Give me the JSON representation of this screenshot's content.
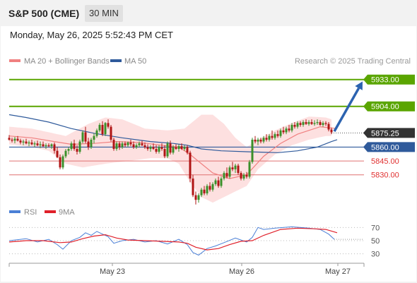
{
  "header": {
    "title": "S&P 500 (CME)",
    "interval": "30 MIN",
    "datetime": "Monday, May 26, 2025 5:52:43 PM CET"
  },
  "legend": {
    "items": [
      {
        "label": "MA 20 + Bollinger Bands",
        "color": "#f08080"
      },
      {
        "label": "MA 50",
        "color": "#2f5a9b"
      }
    ],
    "credit": "Research © 2025 Trading Central"
  },
  "rsi_legend": {
    "items": [
      {
        "label": "RSI",
        "color": "#4a7fd6"
      },
      {
        "label": "9MA",
        "color": "#e0202a"
      }
    ]
  },
  "colors": {
    "bull": "#3a8f2a",
    "bear": "#b01515",
    "resistance": "#5aa500",
    "support": "#e07070",
    "ma50": "#2f5a9b",
    "ma20": "#f08080",
    "band": "#fde0e0",
    "current": "#333333",
    "arrow": "#2c63b0"
  },
  "chart_data": [
    {
      "type": "candlestick",
      "title": "S&P 500 (CME)",
      "interval": "30 MIN",
      "x_ticks": [
        "May 23",
        "May 26",
        "May 27"
      ],
      "ylim": [
        5797,
        5945
      ],
      "ohlc": [
        [
          5870,
          5873,
          5867,
          5868
        ],
        [
          5868,
          5870,
          5865,
          5867
        ],
        [
          5867,
          5871,
          5864,
          5869
        ],
        [
          5869,
          5872,
          5866,
          5867
        ],
        [
          5867,
          5869,
          5863,
          5865
        ],
        [
          5865,
          5868,
          5862,
          5866
        ],
        [
          5866,
          5869,
          5863,
          5864
        ],
        [
          5864,
          5867,
          5861,
          5865
        ],
        [
          5865,
          5868,
          5862,
          5863
        ],
        [
          5863,
          5866,
          5860,
          5864
        ],
        [
          5864,
          5867,
          5861,
          5862
        ],
        [
          5862,
          5866,
          5859,
          5863
        ],
        [
          5863,
          5866,
          5860,
          5861
        ],
        [
          5861,
          5864,
          5858,
          5862
        ],
        [
          5862,
          5864,
          5860,
          5861
        ],
        [
          5861,
          5864,
          5858,
          5863
        ],
        [
          5863,
          5865,
          5853,
          5856
        ],
        [
          5856,
          5860,
          5848,
          5849
        ],
        [
          5849,
          5852,
          5836,
          5838
        ],
        [
          5838,
          5852,
          5836,
          5850
        ],
        [
          5850,
          5858,
          5848,
          5856
        ],
        [
          5856,
          5860,
          5852,
          5858
        ],
        [
          5858,
          5866,
          5856,
          5864
        ],
        [
          5864,
          5868,
          5856,
          5858
        ],
        [
          5858,
          5862,
          5852,
          5855
        ],
        [
          5855,
          5868,
          5853,
          5866
        ],
        [
          5866,
          5878,
          5864,
          5876
        ],
        [
          5876,
          5882,
          5864,
          5866
        ],
        [
          5866,
          5870,
          5857,
          5860
        ],
        [
          5860,
          5870,
          5858,
          5868
        ],
        [
          5868,
          5875,
          5864,
          5872
        ],
        [
          5872,
          5880,
          5870,
          5878
        ],
        [
          5878,
          5886,
          5876,
          5884
        ],
        [
          5884,
          5888,
          5872,
          5874
        ],
        [
          5874,
          5887,
          5872,
          5886
        ],
        [
          5886,
          5890,
          5880,
          5882
        ],
        [
          5882,
          5884,
          5866,
          5868
        ],
        [
          5868,
          5870,
          5856,
          5858
        ],
        [
          5858,
          5866,
          5856,
          5864
        ],
        [
          5864,
          5866,
          5857,
          5860
        ],
        [
          5860,
          5866,
          5858,
          5864
        ],
        [
          5864,
          5866,
          5860,
          5862
        ],
        [
          5862,
          5866,
          5860,
          5865
        ],
        [
          5865,
          5868,
          5861,
          5863
        ],
        [
          5863,
          5866,
          5858,
          5860
        ],
        [
          5860,
          5864,
          5858,
          5862
        ],
        [
          5862,
          5866,
          5860,
          5864
        ],
        [
          5864,
          5867,
          5861,
          5862
        ],
        [
          5862,
          5865,
          5858,
          5860
        ],
        [
          5860,
          5863,
          5856,
          5858
        ],
        [
          5858,
          5862,
          5855,
          5860
        ],
        [
          5860,
          5864,
          5857,
          5858
        ],
        [
          5858,
          5862,
          5853,
          5855
        ],
        [
          5855,
          5862,
          5853,
          5860
        ],
        [
          5860,
          5864,
          5856,
          5858
        ],
        [
          5858,
          5862,
          5848,
          5850
        ],
        [
          5850,
          5866,
          5848,
          5864
        ],
        [
          5864,
          5867,
          5852,
          5854
        ],
        [
          5854,
          5862,
          5852,
          5860
        ],
        [
          5860,
          5863,
          5857,
          5858
        ],
        [
          5858,
          5863,
          5855,
          5861
        ],
        [
          5861,
          5864,
          5857,
          5858
        ],
        [
          5858,
          5862,
          5856,
          5860
        ],
        [
          5860,
          5862,
          5852,
          5854
        ],
        [
          5854,
          5856,
          5822,
          5826
        ],
        [
          5826,
          5830,
          5806,
          5808
        ],
        [
          5808,
          5812,
          5798,
          5803
        ],
        [
          5803,
          5810,
          5800,
          5808
        ],
        [
          5808,
          5816,
          5806,
          5814
        ],
        [
          5814,
          5818,
          5808,
          5810
        ],
        [
          5810,
          5820,
          5808,
          5818
        ],
        [
          5818,
          5822,
          5812,
          5814
        ],
        [
          5814,
          5822,
          5812,
          5820
        ],
        [
          5820,
          5826,
          5818,
          5824
        ],
        [
          5824,
          5828,
          5816,
          5818
        ],
        [
          5818,
          5828,
          5816,
          5826
        ],
        [
          5826,
          5834,
          5824,
          5832
        ],
        [
          5832,
          5838,
          5826,
          5828
        ],
        [
          5828,
          5840,
          5826,
          5838
        ],
        [
          5838,
          5844,
          5834,
          5836
        ],
        [
          5836,
          5842,
          5832,
          5840
        ],
        [
          5840,
          5842,
          5830,
          5832
        ],
        [
          5832,
          5834,
          5824,
          5826
        ],
        [
          5826,
          5832,
          5824,
          5830
        ],
        [
          5830,
          5833,
          5826,
          5828
        ],
        [
          5828,
          5846,
          5826,
          5844
        ],
        [
          5844,
          5870,
          5842,
          5868
        ],
        [
          5868,
          5872,
          5864,
          5866
        ],
        [
          5866,
          5870,
          5862,
          5868
        ],
        [
          5868,
          5870,
          5864,
          5866
        ],
        [
          5866,
          5872,
          5864,
          5870
        ],
        [
          5870,
          5874,
          5866,
          5868
        ],
        [
          5868,
          5874,
          5866,
          5872
        ],
        [
          5872,
          5878,
          5868,
          5870
        ],
        [
          5870,
          5876,
          5868,
          5874
        ],
        [
          5874,
          5878,
          5870,
          5872
        ],
        [
          5872,
          5880,
          5870,
          5878
        ],
        [
          5878,
          5882,
          5874,
          5876
        ],
        [
          5876,
          5882,
          5874,
          5880
        ],
        [
          5880,
          5884,
          5876,
          5878
        ],
        [
          5878,
          5886,
          5876,
          5884
        ],
        [
          5884,
          5887,
          5880,
          5882
        ],
        [
          5882,
          5888,
          5880,
          5886
        ],
        [
          5886,
          5888,
          5882,
          5884
        ],
        [
          5884,
          5889,
          5882,
          5887
        ],
        [
          5887,
          5890,
          5884,
          5885
        ],
        [
          5885,
          5889,
          5883,
          5887
        ],
        [
          5887,
          5890,
          5884,
          5885
        ],
        [
          5885,
          5889,
          5883,
          5886
        ],
        [
          5886,
          5890,
          5884,
          5887
        ],
        [
          5887,
          5889,
          5883,
          5884
        ],
        [
          5884,
          5888,
          5882,
          5886
        ],
        [
          5886,
          5888,
          5883,
          5885
        ],
        [
          5885,
          5887,
          5877,
          5879
        ],
        [
          5879,
          5881,
          5874,
          5876
        ]
      ],
      "ma50": [
        [
          0,
          5895
        ],
        [
          6,
          5892
        ],
        [
          14,
          5887
        ],
        [
          22,
          5880
        ],
        [
          30,
          5875
        ],
        [
          40,
          5870
        ],
        [
          50,
          5866
        ],
        [
          58,
          5864
        ],
        [
          63,
          5862
        ],
        [
          68,
          5858
        ],
        [
          75,
          5856
        ],
        [
          84,
          5855
        ],
        [
          95,
          5854
        ],
        [
          102,
          5856
        ],
        [
          109,
          5860
        ],
        [
          114,
          5866
        ],
        [
          116,
          5868
        ]
      ],
      "ma20": [
        [
          0,
          5872
        ],
        [
          8,
          5870
        ],
        [
          16,
          5866
        ],
        [
          22,
          5863
        ],
        [
          30,
          5864
        ],
        [
          38,
          5866
        ],
        [
          46,
          5865
        ],
        [
          54,
          5862
        ],
        [
          60,
          5860
        ],
        [
          64,
          5852
        ],
        [
          68,
          5842
        ],
        [
          72,
          5832
        ],
        [
          78,
          5826
        ],
        [
          84,
          5830
        ],
        [
          90,
          5850
        ],
        [
          96,
          5864
        ],
        [
          102,
          5874
        ],
        [
          110,
          5882
        ],
        [
          116,
          5880
        ]
      ],
      "band_upper": [
        [
          0,
          5882
        ],
        [
          8,
          5880
        ],
        [
          14,
          5876
        ],
        [
          20,
          5872
        ],
        [
          28,
          5885
        ],
        [
          34,
          5892
        ],
        [
          40,
          5890
        ],
        [
          48,
          5880
        ],
        [
          56,
          5878
        ],
        [
          62,
          5880
        ],
        [
          64,
          5885
        ],
        [
          68,
          5895
        ],
        [
          72,
          5895
        ],
        [
          76,
          5885
        ],
        [
          80,
          5870
        ],
        [
          84,
          5860
        ],
        [
          88,
          5868
        ],
        [
          94,
          5878
        ],
        [
          100,
          5886
        ],
        [
          106,
          5893
        ],
        [
          112,
          5892
        ],
        [
          116,
          5888
        ]
      ],
      "band_lower": [
        [
          0,
          5863
        ],
        [
          8,
          5860
        ],
        [
          14,
          5856
        ],
        [
          20,
          5842
        ],
        [
          26,
          5838
        ],
        [
          34,
          5842
        ],
        [
          42,
          5845
        ],
        [
          50,
          5848
        ],
        [
          56,
          5848
        ],
        [
          60,
          5842
        ],
        [
          64,
          5822
        ],
        [
          68,
          5806
        ],
        [
          72,
          5800
        ],
        [
          76,
          5806
        ],
        [
          80,
          5812
        ],
        [
          84,
          5818
        ],
        [
          88,
          5836
        ],
        [
          94,
          5852
        ],
        [
          100,
          5862
        ],
        [
          106,
          5868
        ],
        [
          112,
          5872
        ],
        [
          116,
          5872
        ]
      ],
      "levels": [
        {
          "value": 5933.0,
          "label": "5933.00",
          "kind": "resistance"
        },
        {
          "value": 5904.0,
          "label": "5904.00",
          "kind": "resistance"
        },
        {
          "value": 5875.25,
          "label": "5875.25",
          "kind": "current"
        },
        {
          "value": 5860.0,
          "label": "5860.00",
          "kind": "pivot"
        },
        {
          "value": 5845.0,
          "label": "5845.00",
          "kind": "support"
        },
        {
          "value": 5830.0,
          "label": "5830.00",
          "kind": "support"
        }
      ],
      "arrow": {
        "from": 5877,
        "to": 5931
      }
    },
    {
      "type": "line",
      "series": [
        {
          "name": "RSI"
        },
        {
          "name": "9MA"
        }
      ],
      "yticks": [
        70,
        50,
        30
      ],
      "ylim": [
        20,
        80
      ],
      "rsi": [
        [
          0,
          50
        ],
        [
          6,
          53
        ],
        [
          10,
          48
        ],
        [
          14,
          52
        ],
        [
          17,
          44
        ],
        [
          19,
          37
        ],
        [
          22,
          50
        ],
        [
          25,
          55
        ],
        [
          27,
          62
        ],
        [
          29,
          58
        ],
        [
          31,
          64
        ],
        [
          33,
          60
        ],
        [
          35,
          56
        ],
        [
          37,
          46
        ],
        [
          40,
          50
        ],
        [
          44,
          52
        ],
        [
          48,
          48
        ],
        [
          52,
          50
        ],
        [
          56,
          45
        ],
        [
          60,
          52
        ],
        [
          63,
          44
        ],
        [
          65,
          32
        ],
        [
          67,
          28
        ],
        [
          70,
          38
        ],
        [
          73,
          42
        ],
        [
          76,
          47
        ],
        [
          80,
          54
        ],
        [
          84,
          48
        ],
        [
          86,
          55
        ],
        [
          88,
          70
        ],
        [
          90,
          67
        ],
        [
          94,
          69
        ],
        [
          100,
          71
        ],
        [
          106,
          69
        ],
        [
          110,
          67
        ],
        [
          113,
          60
        ],
        [
          115,
          52
        ]
      ],
      "rsi_ma": [
        [
          0,
          48
        ],
        [
          6,
          50
        ],
        [
          12,
          50
        ],
        [
          18,
          47
        ],
        [
          22,
          48
        ],
        [
          26,
          53
        ],
        [
          30,
          57
        ],
        [
          34,
          59
        ],
        [
          38,
          54
        ],
        [
          42,
          51
        ],
        [
          48,
          50
        ],
        [
          54,
          49
        ],
        [
          60,
          48
        ],
        [
          63,
          46
        ],
        [
          66,
          40
        ],
        [
          70,
          36
        ],
        [
          74,
          38
        ],
        [
          78,
          44
        ],
        [
          82,
          49
        ],
        [
          86,
          50
        ],
        [
          90,
          58
        ],
        [
          96,
          67
        ],
        [
          102,
          69
        ],
        [
          108,
          68
        ],
        [
          112,
          67
        ],
        [
          116,
          62
        ]
      ]
    }
  ]
}
